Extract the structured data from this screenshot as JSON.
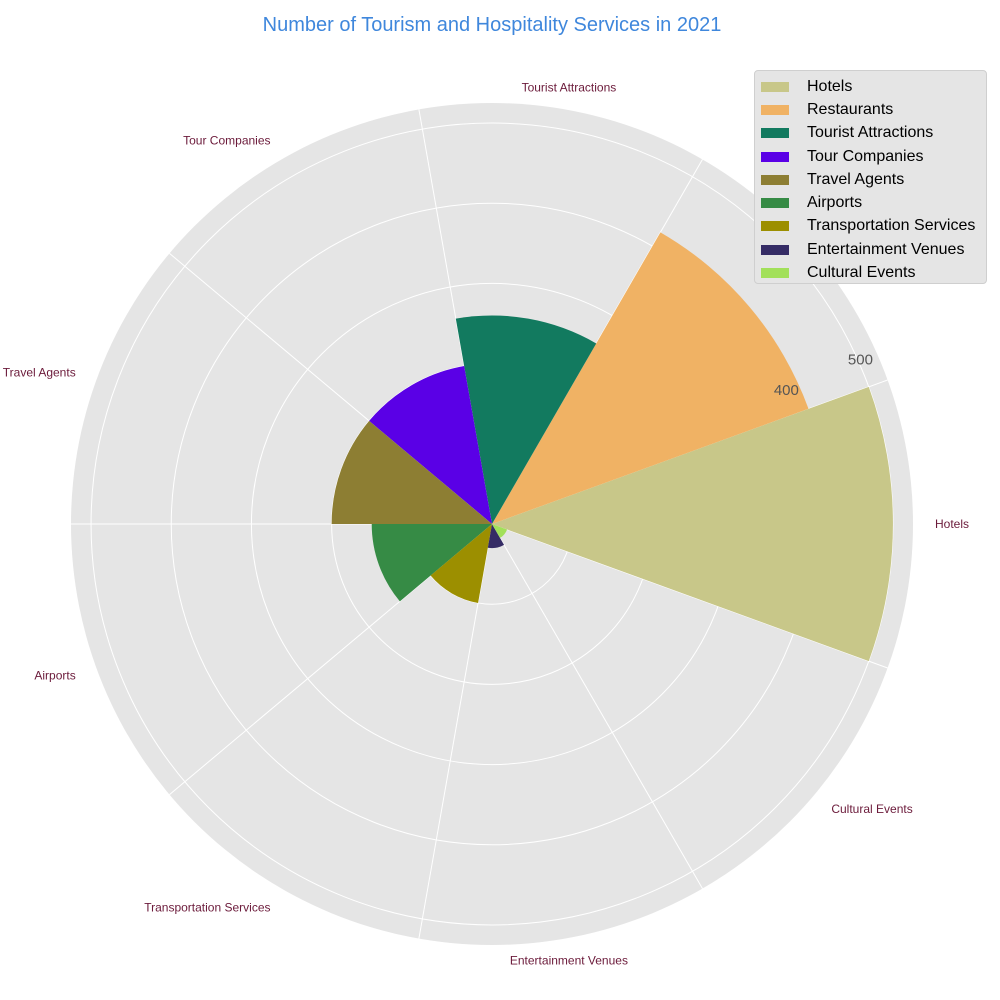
{
  "chart_data": {
    "type": "rose",
    "title": "Number of Tourism and Hospitality Services in 2021",
    "categories": [
      "Hotels",
      "Restaurants",
      "Tourist Attractions",
      "Tour Companies",
      "Travel Agents",
      "Airports",
      "Transportation Services",
      "Entertainment Venues",
      "Cultural Events"
    ],
    "values": [
      500,
      420,
      260,
      200,
      200,
      150,
      100,
      30,
      20
    ],
    "colors": [
      "#c8c789",
      "#f0b264",
      "#127a5f",
      "#5a00e6",
      "#8d7e33",
      "#368b45",
      "#9c8f00",
      "#352c65",
      "#a2e05a"
    ],
    "radial_ticks": [
      100,
      200,
      300,
      400,
      500
    ],
    "radial_tick_labels_shown": [
      "400",
      "500"
    ],
    "rmax": 525,
    "grid": true,
    "legend_position": "top-right",
    "category_label_color": "#6b1a3a",
    "title_color": "#3f87dc"
  }
}
